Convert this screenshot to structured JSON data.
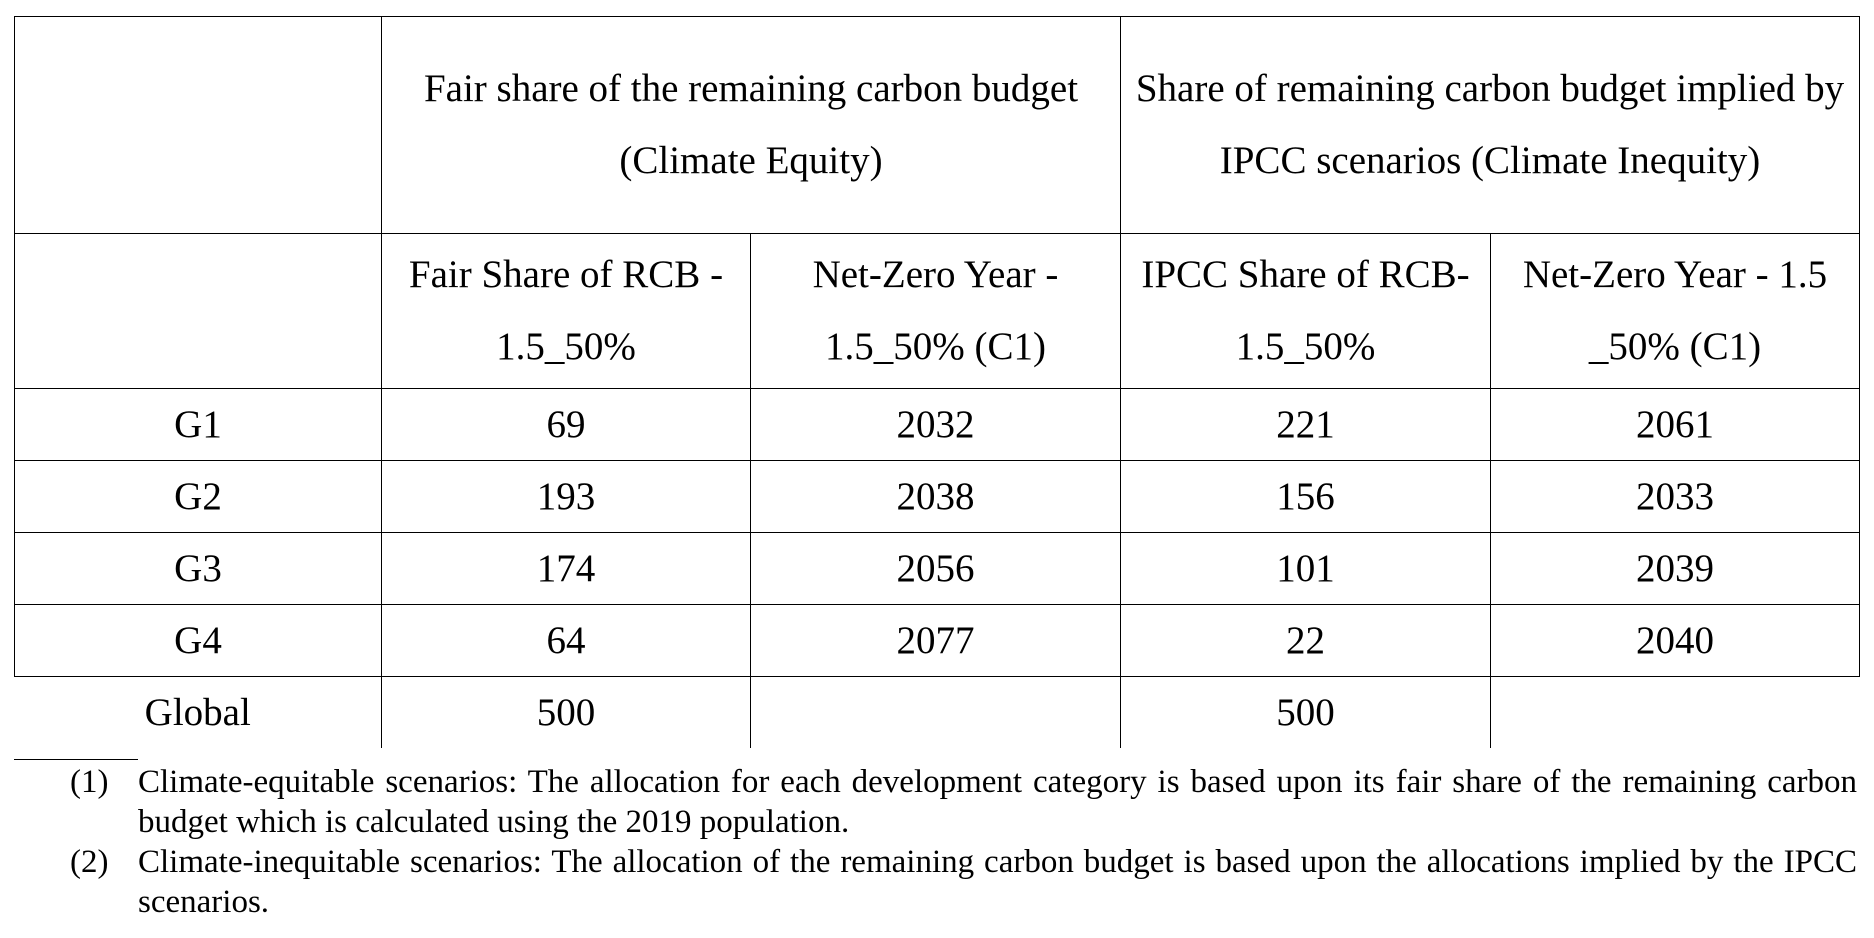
{
  "table": {
    "group_headers": {
      "fair": "Fair share of the remaining carbon budget (Climate Equity)",
      "ipcc": "Share of remaining carbon budget implied by IPCC scenarios  (Climate Inequity)"
    },
    "columns": [
      "Fair Share of RCB - 1.5_50%",
      "Net-Zero Year - 1.5_50% (C1)",
      "IPCC Share of RCB- 1.5_50%",
      "Net-Zero Year - 1.5 _50% (C1)"
    ],
    "rows": [
      {
        "label": "G1",
        "cells": [
          "69",
          "2032",
          "221",
          "2061"
        ]
      },
      {
        "label": "G2",
        "cells": [
          "193",
          "2038",
          "156",
          "2033"
        ]
      },
      {
        "label": "G3",
        "cells": [
          "174",
          "2056",
          "101",
          "2039"
        ]
      },
      {
        "label": "G4",
        "cells": [
          "64",
          "2077",
          "22",
          "2040"
        ]
      },
      {
        "label": "Global",
        "cells": [
          "500",
          "",
          "500",
          ""
        ]
      }
    ]
  },
  "notes": [
    {
      "num": "(1)",
      "text": "Climate-equitable scenarios: The allocation for each development category is based upon its fair share of the remaining carbon budget which is calculated using the 2019 population."
    },
    {
      "num": "(2)",
      "text": "Climate-inequitable scenarios: The allocation of the remaining carbon budget is based upon the allocations implied by the IPCC scenarios."
    }
  ]
}
